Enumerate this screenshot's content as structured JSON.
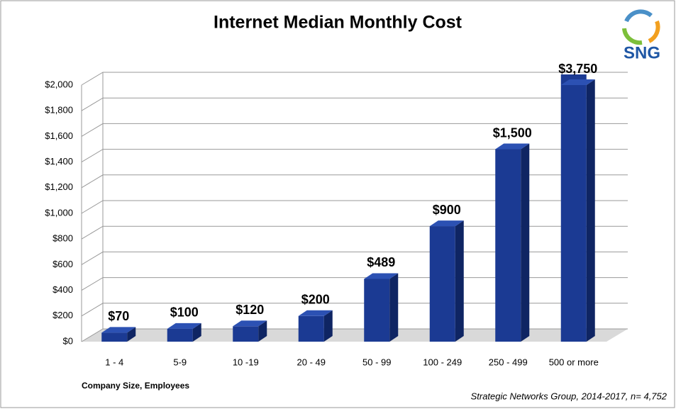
{
  "logo": "SNG",
  "chart_data": {
    "type": "bar",
    "title": "Internet Median Monthly Cost",
    "x_label": "Company Size, Employees",
    "source": "Strategic Networks Group, 2014-2017, n= 4,752",
    "categories": [
      "1 - 4",
      "5-9",
      "10 -19",
      "20 - 49",
      "50 - 99",
      "100 - 249",
      "250 - 499",
      "500 or more"
    ],
    "values": [
      70,
      100,
      120,
      200,
      489,
      900,
      1500,
      3750
    ],
    "value_labels": [
      "$70",
      "$100",
      "$120",
      "$200",
      "$489",
      "$900",
      "$1,500",
      "$3,750"
    ],
    "color": "#1b3a93",
    "ylim": [
      0,
      2000
    ],
    "yticks": [
      {
        "value": 0,
        "label": "$0"
      },
      {
        "value": 200,
        "label": "$200"
      },
      {
        "value": 400,
        "label": "$400"
      },
      {
        "value": 600,
        "label": "$600"
      },
      {
        "value": 800,
        "label": "$800"
      },
      {
        "value": 1000,
        "label": "$1,000"
      },
      {
        "value": 1200,
        "label": "$1,200"
      },
      {
        "value": 1400,
        "label": "$1,400"
      },
      {
        "value": 1600,
        "label": "$1,600"
      },
      {
        "value": 1800,
        "label": "$1,800"
      },
      {
        "value": 2000,
        "label": "$2,000"
      }
    ],
    "grid": true
  }
}
